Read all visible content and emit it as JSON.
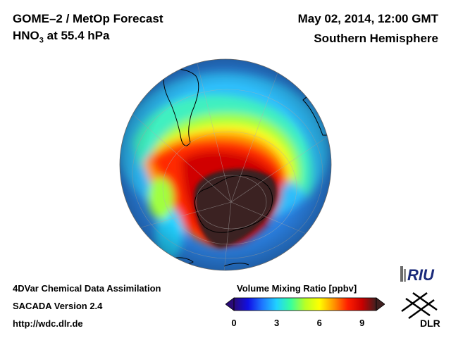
{
  "header": {
    "title": "GOME–2 / MetOp Forecast",
    "species": "HNO",
    "species_sub": "3",
    "level": " at 55.4 hPa",
    "datetime": "May 02, 2014, 12:00 GMT",
    "hemisphere": "Southern Hemisphere"
  },
  "footer": {
    "line1": "4DVar Chemical Data Assimilation",
    "line2": "SACADA Version 2.4",
    "line3": "http://wdc.dlr.de"
  },
  "colorbar": {
    "title": "Volume Mixing Ratio [ppbv]",
    "ticks": [
      "0",
      "3",
      "6",
      "9"
    ],
    "range": [
      0,
      10
    ],
    "colors": [
      "#2a0a78",
      "#1010e6",
      "#1e78ff",
      "#20d2ff",
      "#38ff9c",
      "#b8ff26",
      "#ffff00",
      "#ff9600",
      "#ff1e00",
      "#c80000",
      "#402020"
    ]
  },
  "logos": {
    "riu": "RIU",
    "dlr": "DLR"
  },
  "map": {
    "projection": "orthographic, south polar view",
    "ocean_color": "#2a7fe0",
    "vortex_core_color": "#3a2020"
  }
}
